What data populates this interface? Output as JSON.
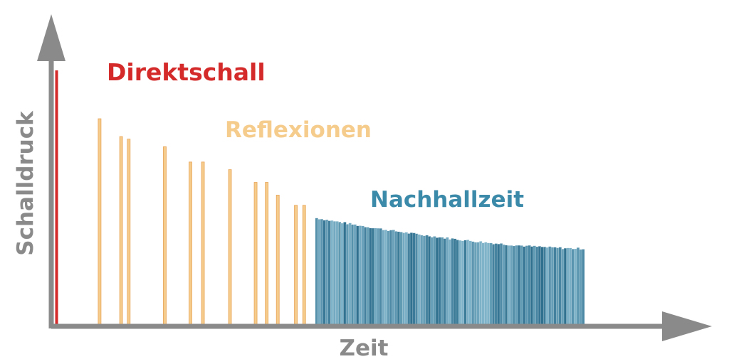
{
  "labels": {
    "y_axis": "Schalldruck",
    "x_axis": "Zeit",
    "direct": "Direktschall",
    "reflections": "Reflexionen",
    "reverb": "Nachhallzeit"
  },
  "colors": {
    "axis": "#8a8a8a",
    "direct": "#d42a2a",
    "reflection_fill": "#f6cc8c",
    "reflection_stroke": "#e8a458",
    "reverb_light": "#7fb3c9",
    "reverb_dark": "#1a5f80",
    "reverb_label": "#3c8aaa"
  },
  "chart_data": {
    "type": "bar",
    "title": "",
    "xlabel": "Zeit",
    "ylabel": "Schalldruck",
    "x_range": [
      0,
      100
    ],
    "y_range": [
      0,
      100
    ],
    "series": [
      {
        "name": "Direktschall",
        "points": [
          [
            5.7,
            100
          ]
        ]
      },
      {
        "name": "Reflexionen",
        "points": [
          [
            11.9,
            81
          ],
          [
            15.0,
            74
          ],
          [
            16.1,
            73
          ],
          [
            21.3,
            70
          ],
          [
            25.0,
            64
          ],
          [
            26.8,
            64
          ],
          [
            30.7,
            61
          ],
          [
            34.4,
            56
          ],
          [
            36.0,
            56
          ],
          [
            37.6,
            51
          ],
          [
            40.2,
            47
          ],
          [
            41.4,
            47
          ]
        ]
      },
      {
        "name": "Nachhallzeit",
        "x_start": 43.0,
        "x_end": 81.5,
        "start_level": 42,
        "end_level": 30
      }
    ]
  }
}
